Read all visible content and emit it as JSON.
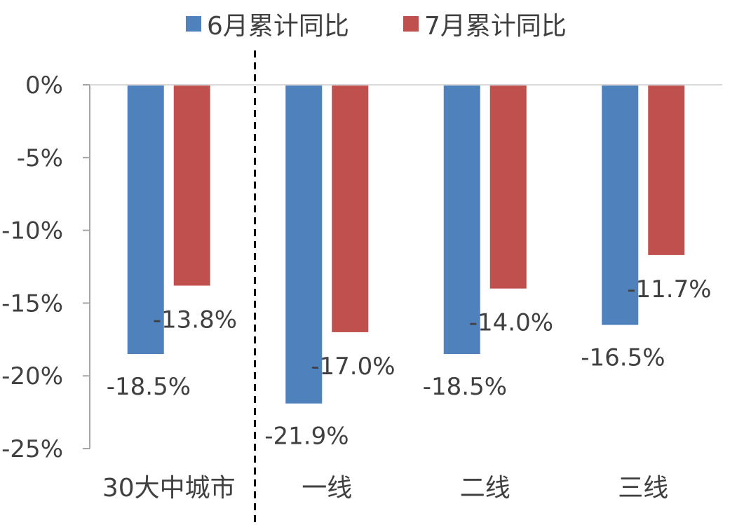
{
  "chart_data": {
    "type": "bar",
    "categories": [
      "30大中城市",
      "一线",
      "二线",
      "三线"
    ],
    "series": [
      {
        "name": "6月累计同比",
        "values": [
          -18.5,
          -21.9,
          -18.5,
          -16.5
        ],
        "labels": [
          "-18.5%",
          "-21.9%",
          "-18.5%",
          "-16.5%"
        ],
        "color": "#4F81BD"
      },
      {
        "name": "7月累计同比",
        "values": [
          -13.8,
          -17.0,
          -14.0,
          -11.7
        ],
        "labels": [
          "-13.8%",
          "-17.0%",
          "-14.0%",
          "-11.7%"
        ],
        "color": "#C0504D"
      }
    ],
    "ylim": [
      -25,
      0
    ],
    "yticks": [
      0,
      -5,
      -10,
      -15,
      -20,
      -25
    ],
    "ytick_labels": [
      "0%",
      "-5%",
      "-10%",
      "-15%",
      "-20%",
      "-25%"
    ],
    "legend_position": "top",
    "separator": "dashed line between 30大中城市 and 一线"
  }
}
